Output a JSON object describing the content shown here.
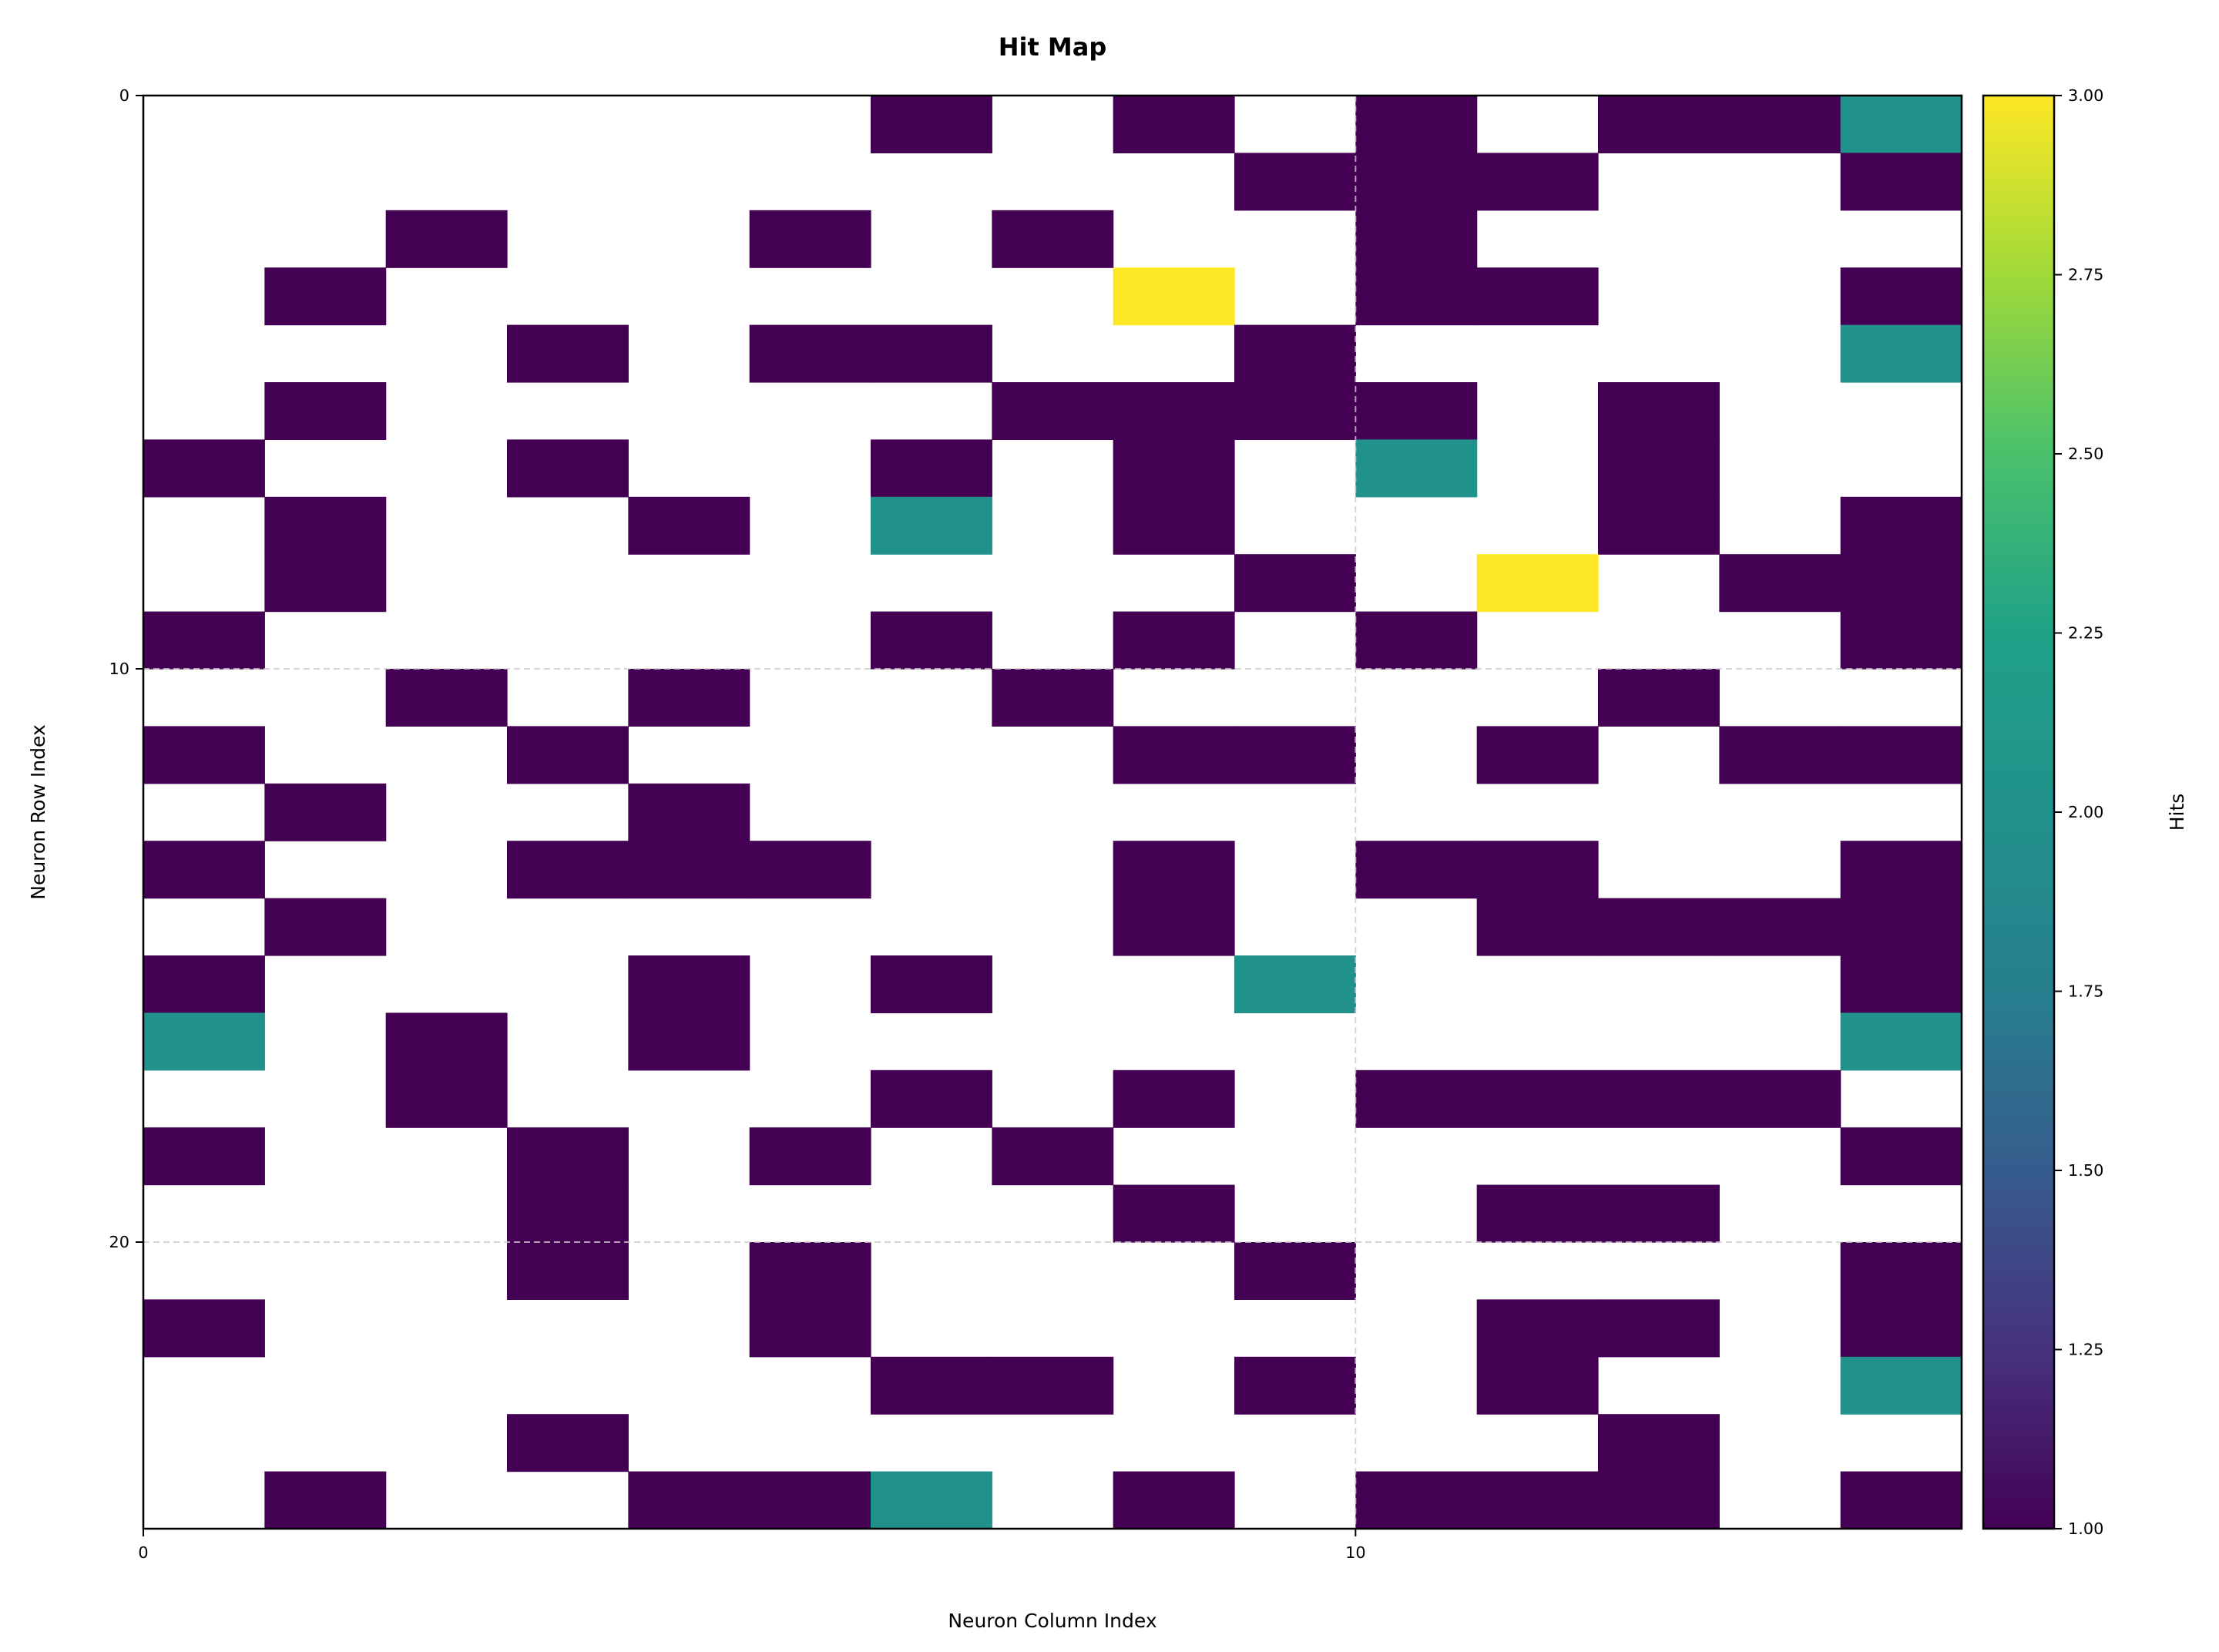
{
  "chart_data": {
    "type": "heatmap",
    "title": "Hit Map",
    "xlabel": "Neuron Column Index",
    "ylabel": "Neuron Row Index",
    "colorbar_label": "Hits",
    "n_cols": 15,
    "n_rows": 25,
    "xlim": [
      0,
      15
    ],
    "ylim": [
      0,
      25
    ],
    "y_inverted": true,
    "grid": true,
    "x_ticks": [
      0,
      10
    ],
    "y_ticks": [
      0,
      10,
      20
    ],
    "colorbar_range": [
      1.0,
      3.0
    ],
    "colorbar_ticks": [
      "1.00",
      "1.25",
      "1.50",
      "1.75",
      "2.00",
      "2.25",
      "2.50",
      "2.75",
      "3.00"
    ],
    "colormap": "viridis",
    "colors": {
      "empty": "#ffffff",
      "hits_1": "#440154",
      "hits_2": "#21918c",
      "hits_3": "#fde725"
    },
    "values": [
      [
        0,
        0,
        0,
        0,
        0,
        0,
        1,
        0,
        1,
        0,
        1,
        0,
        1,
        1,
        2
      ],
      [
        0,
        0,
        0,
        0,
        0,
        0,
        0,
        0,
        0,
        1,
        1,
        1,
        0,
        0,
        1
      ],
      [
        0,
        0,
        1,
        0,
        0,
        1,
        0,
        1,
        0,
        0,
        1,
        0,
        0,
        0,
        0
      ],
      [
        0,
        1,
        0,
        0,
        0,
        0,
        0,
        0,
        3,
        0,
        1,
        1,
        0,
        0,
        1
      ],
      [
        0,
        0,
        0,
        1,
        0,
        1,
        1,
        0,
        0,
        1,
        0,
        0,
        0,
        0,
        2
      ],
      [
        0,
        1,
        0,
        0,
        0,
        0,
        0,
        1,
        1,
        1,
        1,
        0,
        1,
        0,
        0
      ],
      [
        1,
        0,
        0,
        1,
        0,
        0,
        1,
        0,
        1,
        0,
        2,
        0,
        1,
        0,
        0
      ],
      [
        0,
        1,
        0,
        0,
        1,
        0,
        2,
        0,
        1,
        0,
        0,
        0,
        1,
        0,
        1
      ],
      [
        0,
        1,
        0,
        0,
        0,
        0,
        0,
        0,
        0,
        1,
        0,
        3,
        0,
        1,
        1
      ],
      [
        1,
        0,
        0,
        0,
        0,
        0,
        1,
        0,
        1,
        0,
        1,
        0,
        0,
        0,
        1
      ],
      [
        0,
        0,
        1,
        0,
        1,
        0,
        0,
        1,
        0,
        0,
        0,
        0,
        1,
        0,
        0
      ],
      [
        1,
        0,
        0,
        1,
        0,
        0,
        0,
        0,
        1,
        1,
        0,
        1,
        0,
        1,
        1
      ],
      [
        0,
        1,
        0,
        0,
        1,
        0,
        0,
        0,
        0,
        0,
        0,
        0,
        0,
        0,
        0
      ],
      [
        1,
        0,
        0,
        1,
        1,
        1,
        0,
        0,
        1,
        0,
        1,
        1,
        0,
        0,
        1
      ],
      [
        0,
        1,
        0,
        0,
        0,
        0,
        0,
        0,
        1,
        0,
        0,
        1,
        1,
        1,
        1
      ],
      [
        1,
        0,
        0,
        0,
        1,
        0,
        1,
        0,
        0,
        2,
        0,
        0,
        0,
        0,
        1
      ],
      [
        2,
        0,
        1,
        0,
        1,
        0,
        0,
        0,
        0,
        0,
        0,
        0,
        0,
        0,
        2
      ],
      [
        0,
        0,
        1,
        0,
        0,
        0,
        1,
        0,
        1,
        0,
        1,
        1,
        1,
        1,
        0
      ],
      [
        1,
        0,
        0,
        1,
        0,
        1,
        0,
        1,
        0,
        0,
        0,
        0,
        0,
        0,
        1
      ],
      [
        0,
        0,
        0,
        1,
        0,
        0,
        0,
        0,
        1,
        0,
        0,
        1,
        1,
        0,
        0
      ],
      [
        0,
        0,
        0,
        1,
        0,
        1,
        0,
        0,
        0,
        1,
        0,
        0,
        0,
        0,
        1
      ],
      [
        1,
        0,
        0,
        0,
        0,
        1,
        0,
        0,
        0,
        0,
        0,
        1,
        1,
        0,
        1
      ],
      [
        0,
        0,
        0,
        0,
        0,
        0,
        1,
        1,
        0,
        1,
        0,
        1,
        0,
        0,
        2
      ],
      [
        0,
        0,
        0,
        1,
        0,
        0,
        0,
        0,
        0,
        0,
        0,
        0,
        1,
        0,
        0
      ],
      [
        0,
        1,
        0,
        0,
        1,
        1,
        2,
        0,
        1,
        0,
        1,
        1,
        1,
        0,
        1
      ]
    ]
  }
}
